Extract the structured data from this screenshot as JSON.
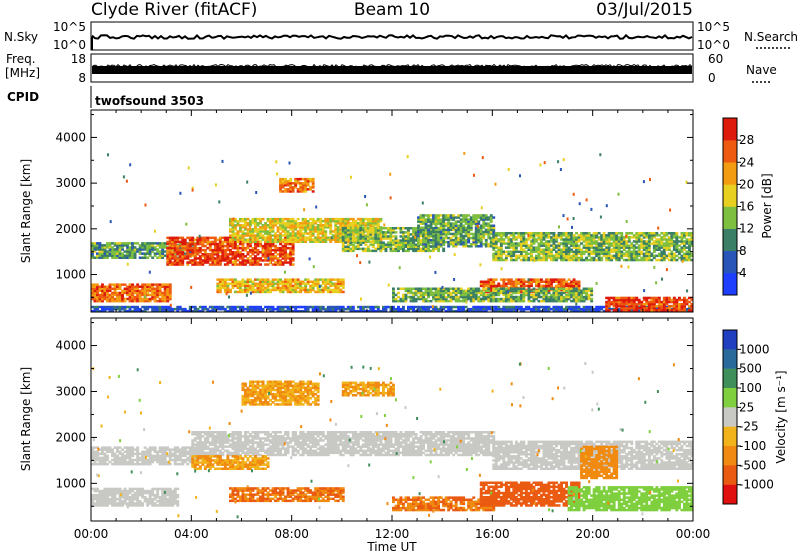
{
  "header": {
    "station": "Clyde River (fitACF)",
    "beam": "Beam 10",
    "date": "03/Jul/2015"
  },
  "nsky_panel": {
    "left_label": "N.Sky",
    "left_ticks": [
      "10^5",
      "10^0"
    ],
    "right_label": "N.Search",
    "right_ticks": [
      "10^5",
      "10^0"
    ]
  },
  "freq_panel": {
    "left_label_line1": "Freq.",
    "left_label_line2": "[MHz]",
    "left_ticks": [
      "18",
      "8"
    ],
    "right_label": "Nave",
    "right_ticks": [
      "60",
      "0"
    ]
  },
  "cpid": {
    "label": "CPID",
    "value": "twofsound 3503"
  },
  "x_axis": {
    "ticks": [
      "00:00",
      "04:00",
      "08:00",
      "12:00",
      "16:00",
      "20:00",
      "00:00"
    ],
    "label": "Time UT"
  },
  "y_axis": {
    "label": "Slant Range [km]",
    "ticks": [
      "1000",
      "2000",
      "3000",
      "4000"
    ]
  },
  "power_scale": {
    "label": "Power [dB]",
    "ticks": [
      "4",
      "8",
      "12",
      "16",
      "20",
      "24",
      "28"
    ],
    "colors": [
      "#1f3fff",
      "#2a55b8",
      "#3a7f66",
      "#7fbf3f",
      "#e8d020",
      "#f39c12",
      "#ee5a10",
      "#dd1a0c"
    ]
  },
  "velocity_scale": {
    "label": "Velocity [m s⁻¹]",
    "ticks": [
      "1000",
      "500",
      "100",
      "25",
      "-25",
      "-100",
      "-500",
      "-1000"
    ],
    "colors": [
      "#2040c0",
      "#2a6a9a",
      "#3f8f5a",
      "#7fcf3f",
      "#c8c8c4",
      "#f2b21a",
      "#f08a10",
      "#ea5a10",
      "#e01010"
    ]
  },
  "chart_data": [
    {
      "type": "heatmap",
      "title": "Power",
      "xlabel": "Time UT",
      "ylabel": "Slant Range [km]",
      "xlim": [
        0,
        24
      ],
      "ylim": [
        180,
        4600
      ],
      "colorbar": {
        "label": "Power [dB]",
        "range": [
          0,
          32
        ],
        "ticks": [
          4,
          8,
          12,
          16,
          20,
          24,
          28
        ]
      },
      "bands": [
        {
          "t0": 0.0,
          "t1": 3.2,
          "r0": 400,
          "r1": 800,
          "value": 25
        },
        {
          "t0": 0.0,
          "t1": 4.2,
          "r0": 1350,
          "r1": 1700,
          "value": 12
        },
        {
          "t0": 0.0,
          "t1": 24.0,
          "r0": 180,
          "r1": 300,
          "value": 5
        },
        {
          "t0": 3.0,
          "t1": 8.0,
          "r0": 1200,
          "r1": 1800,
          "value": 27
        },
        {
          "t0": 5.5,
          "t1": 11.5,
          "r0": 1700,
          "r1": 2200,
          "value": 18
        },
        {
          "t0": 5.0,
          "t1": 10.0,
          "r0": 600,
          "r1": 900,
          "value": 20
        },
        {
          "t0": 7.5,
          "t1": 8.8,
          "r0": 2800,
          "r1": 3100,
          "value": 24
        },
        {
          "t0": 10.0,
          "t1": 14.0,
          "r0": 1500,
          "r1": 2000,
          "value": 14
        },
        {
          "t0": 13.0,
          "t1": 16.0,
          "r0": 1600,
          "r1": 2300,
          "value": 12
        },
        {
          "t0": 15.5,
          "t1": 19.5,
          "r0": 600,
          "r1": 900,
          "value": 26
        },
        {
          "t0": 16.0,
          "t1": 24.0,
          "r0": 1300,
          "r1": 1900,
          "value": 14
        },
        {
          "t0": 20.5,
          "t1": 24.0,
          "r0": 200,
          "r1": 500,
          "value": 28
        },
        {
          "t0": 12.0,
          "t1": 20.0,
          "r0": 400,
          "r1": 700,
          "value": 13
        }
      ]
    },
    {
      "type": "heatmap",
      "title": "Velocity",
      "xlabel": "Time UT",
      "ylabel": "Slant Range [km]",
      "xlim": [
        0,
        24
      ],
      "ylim": [
        180,
        4600
      ],
      "colorbar": {
        "label": "Velocity [m s⁻¹]",
        "ticks": [
          1000,
          500,
          100,
          25,
          -25,
          -100,
          -500,
          -1000
        ]
      },
      "bands": [
        {
          "t0": 0.0,
          "t1": 4.2,
          "r0": 1400,
          "r1": 1800,
          "value": 0
        },
        {
          "t0": 0.0,
          "t1": 3.5,
          "r0": 500,
          "r1": 900,
          "value": 0
        },
        {
          "t0": 4.0,
          "t1": 16.0,
          "r0": 1600,
          "r1": 2100,
          "value": 0
        },
        {
          "t0": 4.0,
          "t1": 7.0,
          "r0": 1300,
          "r1": 1600,
          "value": -100
        },
        {
          "t0": 6.0,
          "t1": 9.0,
          "r0": 2700,
          "r1": 3200,
          "value": -100
        },
        {
          "t0": 5.5,
          "t1": 10.0,
          "r0": 600,
          "r1": 900,
          "value": -500
        },
        {
          "t0": 12.0,
          "t1": 16.0,
          "r0": 400,
          "r1": 700,
          "value": -500
        },
        {
          "t0": 15.5,
          "t1": 19.5,
          "r0": 500,
          "r1": 1000,
          "value": -600
        },
        {
          "t0": 16.0,
          "t1": 24.0,
          "r0": 1300,
          "r1": 1900,
          "value": 0
        },
        {
          "t0": 19.0,
          "t1": 24.0,
          "r0": 400,
          "r1": 900,
          "value": 60
        },
        {
          "t0": 19.5,
          "t1": 21.0,
          "r0": 1100,
          "r1": 1800,
          "value": -120
        },
        {
          "t0": 10.0,
          "t1": 12.0,
          "r0": 2900,
          "r1": 3200,
          "value": -100
        }
      ]
    }
  ]
}
